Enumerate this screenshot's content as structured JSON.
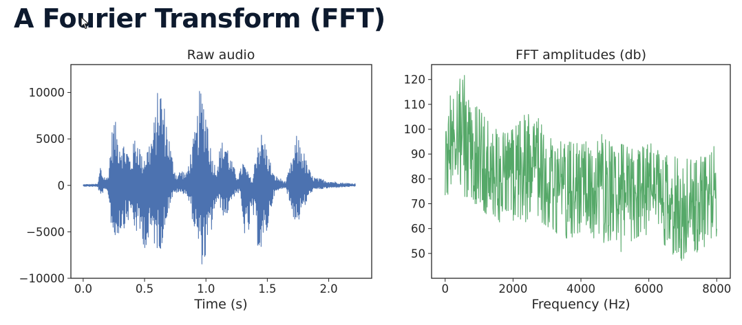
{
  "slide": {
    "title": "A Fourier Transform (FFT)"
  },
  "icons": {
    "cursor": "mouse-pointer-icon"
  },
  "colors": {
    "title": "#0d1a2e",
    "raw_audio_series": "#4c72b0",
    "fft_series": "#55a868",
    "axes": "#262626"
  },
  "chart_data": [
    {
      "type": "line",
      "title": "Raw audio",
      "xlabel": "Time (s)",
      "ylabel": "",
      "xlim": [
        -0.1,
        2.35
      ],
      "ylim": [
        -10000,
        13000
      ],
      "xticks": [
        0.0,
        0.5,
        1.0,
        1.5,
        2.0
      ],
      "xtick_labels": [
        "0.0",
        "0.5",
        "1.0",
        "1.5",
        "2.0"
      ],
      "yticks": [
        -10000,
        -5000,
        0,
        5000,
        10000
      ],
      "ytick_labels": [
        "−10000",
        "−5000",
        "0",
        "5000",
        "10000"
      ],
      "grid": false,
      "color": "#4c72b0",
      "envelope": {
        "x": [
          0.0,
          0.12,
          0.14,
          0.16,
          0.2,
          0.23,
          0.25,
          0.28,
          0.32,
          0.36,
          0.39,
          0.42,
          0.45,
          0.48,
          0.52,
          0.56,
          0.59,
          0.62,
          0.65,
          0.68,
          0.72,
          0.76,
          0.8,
          0.84,
          0.88,
          0.92,
          0.95,
          0.98,
          1.01,
          1.04,
          1.08,
          1.12,
          1.16,
          1.2,
          1.25,
          1.28,
          1.3,
          1.34,
          1.38,
          1.42,
          1.46,
          1.5,
          1.55,
          1.6,
          1.65,
          1.7,
          1.74,
          1.78,
          1.82,
          1.86,
          1.9,
          1.94,
          2.0,
          2.1,
          2.22
        ],
        "max": [
          100,
          150,
          2300,
          1200,
          800,
          5500,
          7500,
          6000,
          5000,
          4200,
          2800,
          5500,
          5300,
          3000,
          4200,
          5700,
          8000,
          12000,
          9500,
          7500,
          3500,
          1200,
          1800,
          1300,
          4000,
          6500,
          10500,
          10000,
          8500,
          4000,
          2000,
          4500,
          5500,
          3000,
          1200,
          1600,
          2800,
          1500,
          400,
          5500,
          5800,
          4000,
          1200,
          800,
          400,
          2800,
          5500,
          4500,
          2600,
          1100,
          800,
          700,
          500,
          300,
          200
        ],
        "min": [
          -100,
          -150,
          -1500,
          -800,
          -600,
          -4500,
          -6500,
          -5500,
          -4800,
          -4200,
          -3000,
          -5000,
          -5500,
          -6000,
          -7500,
          -5500,
          -7000,
          -7000,
          -6500,
          -3500,
          -1500,
          -800,
          -900,
          -900,
          -3000,
          -6000,
          -8000,
          -9000,
          -7500,
          -5500,
          -2000,
          -2500,
          -4000,
          -1800,
          -800,
          -1000,
          -5000,
          -6000,
          -3000,
          -6500,
          -8000,
          -5000,
          -1200,
          -500,
          -200,
          -3000,
          -4500,
          -3000,
          -2000,
          -700,
          -500,
          -400,
          -300,
          -200,
          -100
        ]
      }
    },
    {
      "type": "line",
      "title": "FFT amplitudes (db)",
      "xlabel": "Frequency (Hz)",
      "ylabel": "",
      "xlim": [
        -400,
        8400
      ],
      "ylim": [
        40,
        126
      ],
      "xticks": [
        0,
        2000,
        4000,
        6000,
        8000
      ],
      "xtick_labels": [
        "0",
        "2000",
        "4000",
        "6000",
        "8000"
      ],
      "yticks": [
        50,
        60,
        70,
        80,
        90,
        100,
        110,
        120
      ],
      "ytick_labels": [
        "50",
        "60",
        "70",
        "80",
        "90",
        "100",
        "110",
        "120"
      ],
      "grid": false,
      "color": "#55a868",
      "envelope": {
        "x": [
          0,
          100,
          200,
          300,
          400,
          500,
          600,
          700,
          800,
          1000,
          1200,
          1500,
          1800,
          2000,
          2200,
          2400,
          2500,
          2600,
          2800,
          3000,
          3300,
          3600,
          4000,
          4300,
          4600,
          4800,
          5000,
          5200,
          5500,
          5800,
          6000,
          6300,
          6600,
          6900,
          7200,
          7500,
          7800,
          8000
        ],
        "max": [
          95,
          115,
          112,
          118,
          123,
          121,
          122,
          116,
          111,
          108,
          104,
          100,
          98,
          100,
          103,
          107,
          110,
          108,
          103,
          97,
          95,
          95,
          94,
          96,
          98,
          96,
          91,
          94,
          92,
          93,
          95,
          91,
          90,
          88,
          88,
          88,
          96,
          91
        ],
        "min": [
          70,
          62,
          75,
          78,
          80,
          76,
          72,
          74,
          70,
          70,
          66,
          64,
          60,
          63,
          64,
          62,
          67,
          70,
          63,
          61,
          58,
          56,
          55,
          57,
          54,
          55,
          56,
          50,
          55,
          58,
          56,
          52,
          53,
          44,
          52,
          50,
          56,
          57
        ]
      }
    }
  ]
}
